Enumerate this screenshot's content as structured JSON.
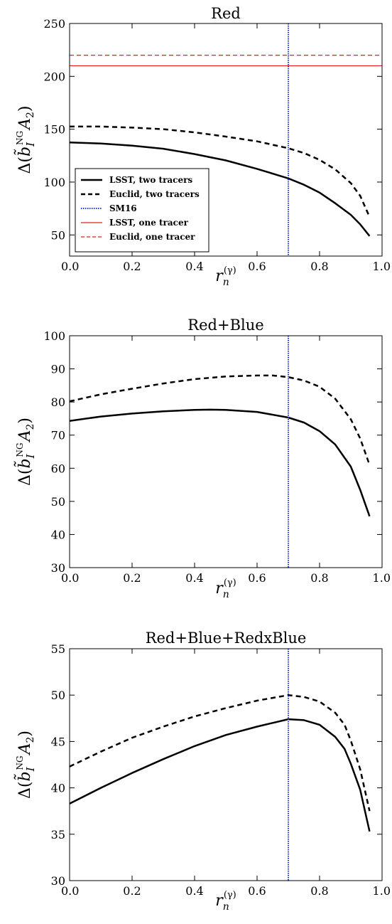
{
  "chart_data": [
    {
      "type": "line",
      "title": "Red",
      "xlabel": "r_n^(γ)",
      "ylabel": "Δ(b̃_I^NG A_2)",
      "xlim": [
        0.0,
        1.0
      ],
      "ylim": [
        30,
        250
      ],
      "xticks": [
        "0.0",
        "0.2",
        "0.4",
        "0.6",
        "0.8",
        "1.0"
      ],
      "yticks": [
        "50",
        "100",
        "150",
        "200",
        "250"
      ],
      "ytick_values": [
        50,
        100,
        150,
        200,
        250
      ],
      "grid": false,
      "legend": "lower-left",
      "series": [
        {
          "name": "LSST, two tracers",
          "style": "solid",
          "color": "#000000",
          "x": [
            0.0,
            0.1,
            0.2,
            0.3,
            0.4,
            0.5,
            0.6,
            0.7,
            0.75,
            0.8,
            0.85,
            0.9,
            0.93,
            0.96
          ],
          "y": [
            137.5,
            136.5,
            134.5,
            131.5,
            126.5,
            120.5,
            112.5,
            103.5,
            97.5,
            90,
            80,
            69,
            60,
            49
          ]
        },
        {
          "name": "Euclid, two tracers",
          "style": "dashed",
          "color": "#000000",
          "x": [
            0.0,
            0.1,
            0.2,
            0.3,
            0.4,
            0.5,
            0.6,
            0.7,
            0.75,
            0.8,
            0.85,
            0.9,
            0.93,
            0.96
          ],
          "y": [
            152.5,
            152.5,
            151.5,
            150,
            147,
            143,
            138.5,
            132,
            127.5,
            121,
            112,
            99,
            87,
            67
          ]
        },
        {
          "name": "SM16",
          "style": "dotted-vertical",
          "color": "#1f3fd0",
          "x_value": 0.7
        },
        {
          "name": "LSST, one tracer",
          "style": "solid-horizontal",
          "color": "#e02020",
          "y_value": 210
        },
        {
          "name": "Euclid, one tracer",
          "style": "dashed-horizontal",
          "color": "#e02020",
          "y_value": 220
        }
      ]
    },
    {
      "type": "line",
      "title": "Red+Blue",
      "xlabel": "r_n^(γ)",
      "ylabel": "Δ(b̃_I^NG A_2)",
      "xlim": [
        0.0,
        1.0
      ],
      "ylim": [
        30,
        100
      ],
      "xticks": [
        "0.0",
        "0.2",
        "0.4",
        "0.6",
        "0.8",
        "1.0"
      ],
      "yticks": [
        "30",
        "40",
        "50",
        "60",
        "70",
        "80",
        "90",
        "100"
      ],
      "ytick_values": [
        30,
        40,
        50,
        60,
        70,
        80,
        90,
        100
      ],
      "grid": false,
      "series": [
        {
          "name": "LSST, two tracers",
          "style": "solid",
          "color": "#000000",
          "x": [
            0.0,
            0.1,
            0.2,
            0.3,
            0.4,
            0.45,
            0.5,
            0.6,
            0.7,
            0.75,
            0.8,
            0.85,
            0.9,
            0.93,
            0.96
          ],
          "y": [
            74.3,
            75.6,
            76.5,
            77.2,
            77.6,
            77.7,
            77.6,
            77.0,
            75.3,
            73.8,
            71.2,
            67.2,
            60.5,
            53.5,
            45.5
          ]
        },
        {
          "name": "Euclid, two tracers",
          "style": "dashed",
          "color": "#000000",
          "x": [
            0.0,
            0.1,
            0.2,
            0.3,
            0.4,
            0.5,
            0.6,
            0.65,
            0.7,
            0.75,
            0.8,
            0.85,
            0.9,
            0.93,
            0.96
          ],
          "y": [
            80.2,
            82.3,
            84.0,
            85.6,
            86.9,
            87.7,
            88.0,
            88.0,
            87.5,
            86.5,
            84.6,
            81.0,
            74.8,
            69.0,
            61.0
          ]
        },
        {
          "name": "SM16",
          "style": "dotted-vertical",
          "color": "#1f3fd0",
          "x_value": 0.7
        }
      ]
    },
    {
      "type": "line",
      "title": "Red+Blue+RedxBlue",
      "xlabel": "r_n^(γ)",
      "ylabel": "Δ(b̃_I^NG A_2)",
      "xlim": [
        0.0,
        1.0
      ],
      "ylim": [
        30,
        55
      ],
      "xticks": [
        "0.0",
        "0.2",
        "0.4",
        "0.6",
        "0.8",
        "1.0"
      ],
      "yticks": [
        "30",
        "35",
        "40",
        "45",
        "50",
        "55"
      ],
      "ytick_values": [
        30,
        35,
        40,
        45,
        50,
        55
      ],
      "grid": false,
      "series": [
        {
          "name": "LSST, two tracers",
          "style": "solid",
          "color": "#000000",
          "x": [
            0.0,
            0.1,
            0.2,
            0.3,
            0.4,
            0.5,
            0.6,
            0.65,
            0.7,
            0.75,
            0.8,
            0.85,
            0.88,
            0.9,
            0.93,
            0.96
          ],
          "y": [
            38.3,
            40.0,
            41.6,
            43.1,
            44.5,
            45.7,
            46.6,
            47.0,
            47.4,
            47.3,
            46.8,
            45.5,
            44.2,
            42.6,
            39.8,
            35.3
          ]
        },
        {
          "name": "Euclid, two tracers",
          "style": "dashed",
          "color": "#000000",
          "x": [
            0.0,
            0.1,
            0.2,
            0.3,
            0.4,
            0.5,
            0.6,
            0.65,
            0.7,
            0.75,
            0.8,
            0.85,
            0.88,
            0.9,
            0.93,
            0.96
          ],
          "y": [
            42.3,
            43.9,
            45.4,
            46.6,
            47.7,
            48.6,
            49.4,
            49.7,
            50.0,
            49.8,
            49.3,
            48.1,
            46.8,
            45.1,
            42.0,
            37.5
          ]
        },
        {
          "name": "SM16",
          "style": "dotted-vertical",
          "color": "#1f3fd0",
          "x_value": 0.7
        }
      ]
    }
  ]
}
